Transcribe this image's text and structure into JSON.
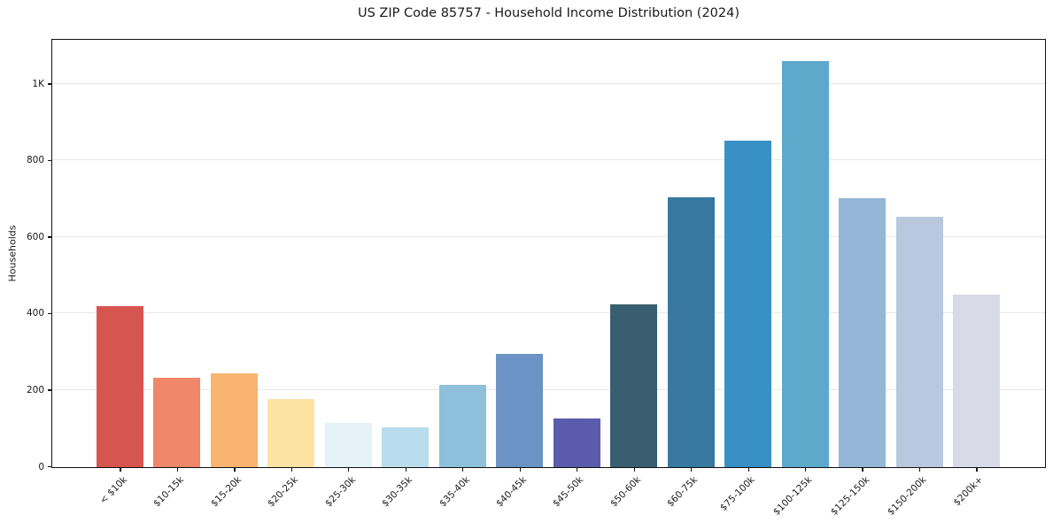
{
  "title": "US ZIP Code 85757 - Household Income Distribution (2024)",
  "chart_data": {
    "type": "bar",
    "title": "US ZIP Code 85757 - Household Income Distribution (2024)",
    "xlabel": "",
    "ylabel": "Households",
    "categories": [
      "< $10k",
      "$10-15k",
      "$15-20k",
      "$20-25k",
      "$25-30k",
      "$30-35k",
      "$35-40k",
      "$40-45k",
      "$45-50k",
      "$50-60k",
      "$60-75k",
      "$75-100k",
      "$100-125k",
      "$125-150k",
      "$150-200k",
      "$200k+"
    ],
    "values": [
      420,
      233,
      246,
      178,
      115,
      103,
      215,
      295,
      128,
      425,
      705,
      852,
      1060,
      703,
      655,
      450
    ],
    "bar_colors": [
      "#d6564f",
      "#f0876a",
      "#f9b470",
      "#fce3a3",
      "#e5f2f7",
      "#b9ddec",
      "#8fc0db",
      "#6b93c5",
      "#5a5cab",
      "#395e70",
      "#3978a0",
      "#3990c5",
      "#5ea8cc",
      "#94b6d7",
      "#b8c8de",
      "#d8dae6"
    ],
    "ylim": [
      0,
      1114
    ],
    "yticks": [
      {
        "value": 0,
        "label": "0"
      },
      {
        "value": 200,
        "label": "200"
      },
      {
        "value": 400,
        "label": "400"
      },
      {
        "value": 600,
        "label": "600"
      },
      {
        "value": 800,
        "label": "800"
      },
      {
        "value": 1000,
        "label": "1K"
      }
    ],
    "grid": "horizontal-major-only",
    "legend": "none",
    "grid_color": "#e8e8e8",
    "axis_color": "#111111",
    "text_color": "#1a1a1a",
    "background": "#ffffff"
  }
}
